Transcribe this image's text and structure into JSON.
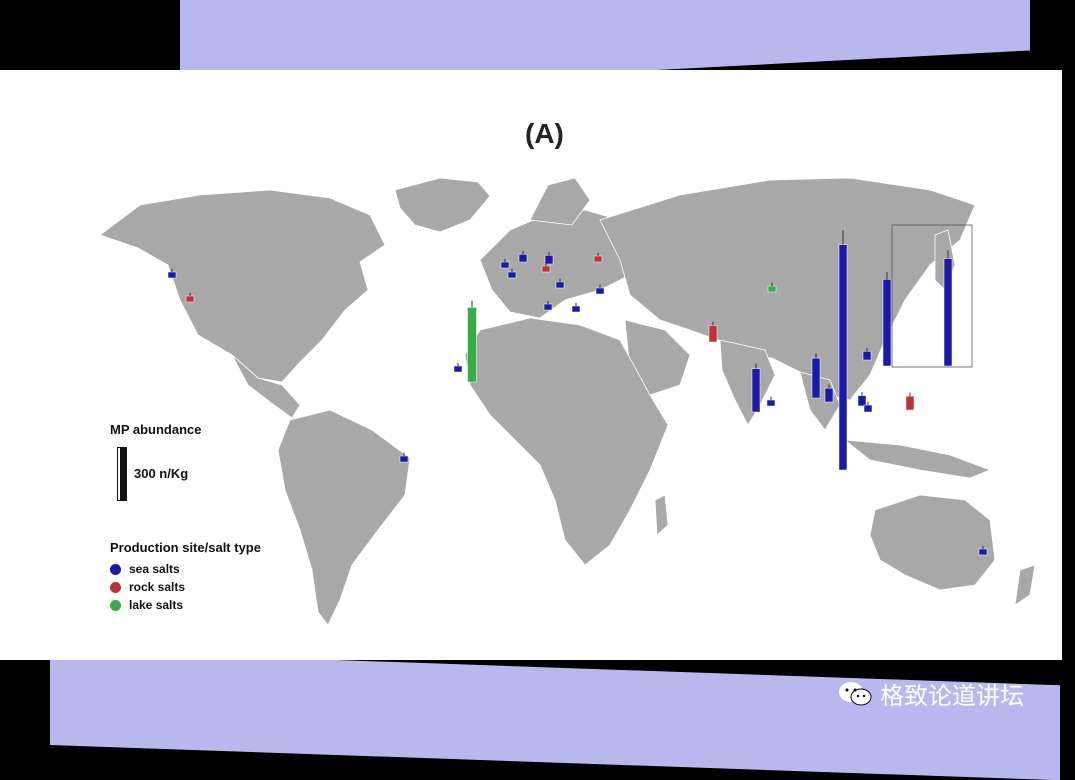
{
  "figure": {
    "title": "(A)"
  },
  "legend": {
    "abundance_title": "MP abundance",
    "scale_label": "300 n/Kg",
    "type_title": "Production site/salt type",
    "types": [
      {
        "label": "sea salts",
        "color": "#1a1aa6"
      },
      {
        "label": "rock salts",
        "color": "#c0303a"
      },
      {
        "label": "lake salts",
        "color": "#3aaa4a"
      }
    ]
  },
  "colors": {
    "land": "#a8a8a8",
    "ocean": "#ffffff",
    "sea": "#1a1aa6",
    "rock": "#c0303a",
    "lake": "#3aaa4a",
    "band": "#b8b8ee"
  },
  "map_data": {
    "unit": "n/Kg",
    "scale_reference": 300,
    "sites": [
      {
        "region": "USA west coast",
        "type": "sea",
        "value": 20
      },
      {
        "region": "USA interior",
        "type": "rock",
        "value": 15
      },
      {
        "region": "Brazil",
        "type": "sea",
        "value": 20
      },
      {
        "region": "Canary Islands",
        "type": "lake",
        "value": 430
      },
      {
        "region": "Morocco coast",
        "type": "sea",
        "value": 25
      },
      {
        "region": "UK",
        "type": "sea",
        "value": 45
      },
      {
        "region": "Germany",
        "type": "sea",
        "value": 50
      },
      {
        "region": "Netherlands",
        "type": "sea",
        "value": 20
      },
      {
        "region": "France",
        "type": "sea",
        "value": 15
      },
      {
        "region": "Spain",
        "type": "sea",
        "value": 15
      },
      {
        "region": "Italy",
        "type": "sea",
        "value": 35
      },
      {
        "region": "Austria",
        "type": "rock",
        "value": 10
      },
      {
        "region": "Ukraine",
        "type": "rock",
        "value": 12
      },
      {
        "region": "Turkey",
        "type": "sea",
        "value": 15
      },
      {
        "region": "Greece",
        "type": "sea",
        "value": 15
      },
      {
        "region": "Iran",
        "type": "rock",
        "value": 95
      },
      {
        "region": "Mongolia",
        "type": "lake",
        "value": 12
      },
      {
        "region": "India",
        "type": "sea",
        "value": 250
      },
      {
        "region": "Sri Lanka",
        "type": "sea",
        "value": 30
      },
      {
        "region": "Bangladesh",
        "type": "sea",
        "value": 230
      },
      {
        "region": "Myanmar",
        "type": "sea",
        "value": 80
      },
      {
        "region": "Thailand",
        "type": "sea",
        "value": 60
      },
      {
        "region": "Vietnam",
        "type": "sea",
        "value": 40
      },
      {
        "region": "China",
        "type": "sea",
        "value": 1300
      },
      {
        "region": "Taiwan",
        "type": "sea",
        "value": 50
      },
      {
        "region": "Philippines",
        "type": "rock",
        "value": 80
      },
      {
        "region": "Korea",
        "type": "sea",
        "value": 500
      },
      {
        "region": "Japan",
        "type": "sea",
        "value": 620
      },
      {
        "region": "Australia",
        "type": "sea",
        "value": 20
      }
    ]
  },
  "watermark": {
    "text": "格致论道讲坛"
  }
}
